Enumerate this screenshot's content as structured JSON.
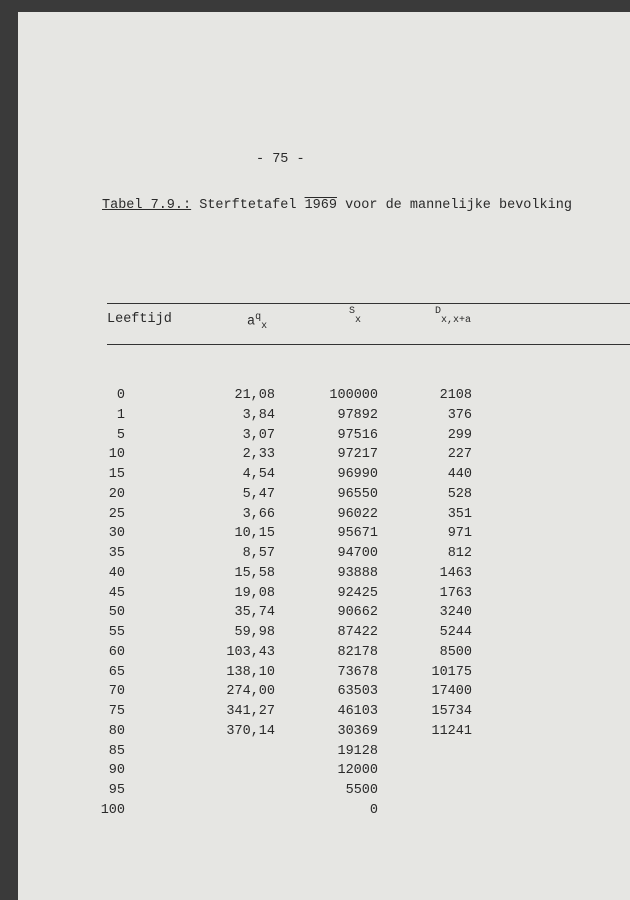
{
  "page_number": "- 75 -",
  "title": {
    "label": "Tabel 7.9.:",
    "before": "Sterftetafel ",
    "year": "1969",
    "after": "voor de mannelijke bevolking"
  },
  "table": {
    "columns": [
      "Leeftijd",
      {
        "base": "a",
        "sup": "q",
        "sub": "x"
      },
      {
        "sup": "S",
        "sub": "x"
      },
      {
        "sup": "D",
        "sub": "x,x+a"
      }
    ],
    "rows": [
      [
        "0",
        "21,08",
        "100000",
        "2108"
      ],
      [
        "1",
        "3,84",
        "97892",
        "376"
      ],
      [
        "5",
        "3,07",
        "97516",
        "299"
      ],
      [
        "10",
        "2,33",
        "97217",
        "227"
      ],
      [
        "15",
        "4,54",
        "96990",
        "440"
      ],
      [
        "20",
        "5,47",
        "96550",
        "528"
      ],
      [
        "25",
        "3,66",
        "96022",
        "351"
      ],
      [
        "30",
        "10,15",
        "95671",
        "971"
      ],
      [
        "35",
        "8,57",
        "94700",
        "812"
      ],
      [
        "40",
        "15,58",
        "93888",
        "1463"
      ],
      [
        "45",
        "19,08",
        "92425",
        "1763"
      ],
      [
        "50",
        "35,74",
        "90662",
        "3240"
      ],
      [
        "55",
        "59,98",
        "87422",
        "5244"
      ],
      [
        "60",
        "103,43",
        "82178",
        "8500"
      ],
      [
        "65",
        "138,10",
        "73678",
        "10175"
      ],
      [
        "70",
        "274,00",
        "63503",
        "17400"
      ],
      [
        "75",
        "341,27",
        "46103",
        "15734"
      ],
      [
        "80",
        "370,14",
        "30369",
        "11241"
      ],
      [
        "85",
        null,
        "19128",
        null
      ],
      [
        "90",
        null,
        "12000",
        null
      ],
      [
        "95",
        null,
        "5500",
        null
      ],
      [
        "100",
        null,
        "0",
        null
      ]
    ]
  }
}
